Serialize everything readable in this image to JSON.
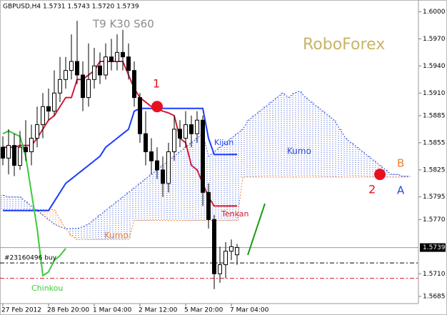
{
  "chart_data": {
    "type": "candlestick",
    "title": "GBPUSD,H4  1.5731 1.5743 1.5720 1.5739",
    "subtitle": "T9 K30 S60",
    "watermark": "RoboForex",
    "categories": [
      "27 Feb 2012",
      null,
      null,
      null,
      null,
      null,
      null,
      null,
      "28 Feb 20:00",
      null,
      null,
      null,
      null,
      null,
      null,
      null,
      "1 Mar 04:00",
      null,
      null,
      null,
      null,
      null,
      null,
      null,
      "2 Mar 12:00",
      null,
      null,
      null,
      null,
      null,
      null,
      null,
      "5 Mar 20:00",
      null,
      null,
      null,
      null,
      null,
      null,
      null,
      "7 Mar 04:00",
      null,
      null,
      null,
      null,
      null,
      null,
      null,
      null,
      null,
      null,
      null,
      null,
      null,
      null,
      null,
      null,
      null,
      null,
      null,
      null,
      null,
      null,
      null,
      null,
      null,
      null,
      null,
      null,
      null,
      null,
      null
    ],
    "open": [
      1.585,
      1.5838,
      1.5852,
      1.583,
      1.585,
      1.5845,
      1.586,
      1.5875,
      1.5895,
      1.589,
      1.591,
      1.5925,
      1.5935,
      1.5945,
      1.593,
      1.5905,
      1.5925,
      1.594,
      1.593,
      1.595,
      1.5945,
      1.5955,
      1.595,
      1.5935,
      1.5905,
      1.5865,
      1.5845,
      1.5835,
      1.5825,
      1.581,
      1.5845,
      1.587,
      1.586,
      1.5875,
      1.5865,
      1.588,
      1.58,
      1.577,
      1.571,
      1.572,
      1.5735,
      1.5731,
      null,
      null,
      null,
      null,
      null,
      null,
      null,
      null,
      null,
      null,
      null,
      null,
      null,
      null,
      null,
      null,
      null,
      null,
      null,
      null,
      null,
      null,
      null,
      null,
      null,
      null,
      null,
      null,
      null,
      null
    ],
    "high": [
      1.5862,
      1.587,
      1.5865,
      1.5868,
      1.588,
      1.5875,
      1.5895,
      1.591,
      1.5915,
      1.5935,
      1.595,
      1.595,
      1.5975,
      1.599,
      1.5945,
      1.5965,
      1.596,
      1.5955,
      1.5965,
      1.597,
      1.5975,
      1.598,
      1.5965,
      1.5945,
      1.591,
      1.589,
      1.586,
      1.585,
      1.584,
      1.5855,
      1.5885,
      1.588,
      1.589,
      1.5885,
      1.589,
      1.5885,
      1.581,
      1.5775,
      1.574,
      1.5745,
      1.5748,
      1.5743,
      null,
      null,
      null,
      null,
      null,
      null,
      null,
      null,
      null,
      null,
      null,
      null,
      null,
      null,
      null,
      null,
      null,
      null,
      null,
      null,
      null,
      null,
      null,
      null,
      null,
      null,
      null,
      null,
      null,
      null
    ],
    "low": [
      1.583,
      1.582,
      1.5818,
      1.5825,
      1.5835,
      1.583,
      1.585,
      1.586,
      1.588,
      1.5885,
      1.59,
      1.5915,
      1.5925,
      1.592,
      1.589,
      1.5895,
      1.5915,
      1.592,
      1.5925,
      1.5935,
      1.5935,
      1.5935,
      1.5925,
      1.5895,
      1.5855,
      1.583,
      1.582,
      1.5815,
      1.5795,
      1.58,
      1.5835,
      1.585,
      1.585,
      1.585,
      1.5855,
      1.5785,
      1.576,
      1.5693,
      1.57,
      1.5705,
      1.5725,
      1.572,
      null,
      null,
      null,
      null,
      null,
      null,
      null,
      null,
      null,
      null,
      null,
      null,
      null,
      null,
      null,
      null,
      null,
      null,
      null,
      null,
      null,
      null,
      null,
      null,
      null,
      null,
      null,
      null,
      null,
      null
    ],
    "close": [
      1.5838,
      1.5852,
      1.583,
      1.585,
      1.5845,
      1.586,
      1.5875,
      1.5895,
      1.589,
      1.591,
      1.5925,
      1.5935,
      1.5945,
      1.593,
      1.5905,
      1.5925,
      1.594,
      1.593,
      1.595,
      1.5945,
      1.5955,
      1.595,
      1.5935,
      1.5905,
      1.5865,
      1.5845,
      1.5835,
      1.5825,
      1.581,
      1.5845,
      1.587,
      1.586,
      1.5875,
      1.5865,
      1.588,
      1.58,
      1.577,
      1.571,
      1.572,
      1.5735,
      1.574,
      1.5739,
      null,
      null,
      null,
      null,
      null,
      null,
      null,
      null,
      null,
      null,
      null,
      null,
      null,
      null,
      null,
      null,
      null,
      null,
      null,
      null,
      null,
      null,
      null,
      null,
      null,
      null,
      null,
      null,
      null,
      null
    ],
    "bull_color": "#ffffff",
    "bear_color": "#000000",
    "series": [
      {
        "name": "Tenkan",
        "color": "#d21a3a",
        "values": [
          1.585,
          1.585,
          1.585,
          1.5852,
          1.5852,
          1.5852,
          1.586,
          1.587,
          1.588,
          1.5885,
          1.5895,
          1.5905,
          1.5905,
          1.5925,
          1.5925,
          1.593,
          1.5935,
          1.5945,
          1.5945,
          1.5945,
          1.5945,
          1.5945,
          1.593,
          1.5915,
          1.5905,
          1.59,
          1.5895,
          1.5893,
          1.589,
          1.5888,
          1.5885,
          1.586,
          1.5855,
          1.583,
          1.5825,
          1.581,
          1.5795,
          1.5785,
          1.5785,
          1.5785,
          1.5785,
          1.5785,
          null,
          null,
          null,
          null,
          null,
          null,
          null,
          null,
          null,
          null,
          null,
          null,
          null,
          null,
          null,
          null,
          null,
          null,
          null,
          null,
          null,
          null,
          null,
          null,
          null,
          null,
          null,
          null,
          null,
          null
        ]
      },
      {
        "name": "Kijun",
        "color": "#1a3cff",
        "values": [
          1.578,
          1.578,
          1.578,
          1.578,
          1.578,
          1.578,
          1.578,
          1.578,
          1.578,
          1.579,
          1.58,
          1.581,
          1.5815,
          1.582,
          1.5825,
          1.583,
          1.5835,
          1.584,
          1.585,
          1.5855,
          1.586,
          1.5865,
          1.587,
          1.589,
          1.5893,
          1.5893,
          1.5893,
          1.5893,
          1.5893,
          1.5893,
          1.5893,
          1.5893,
          1.5893,
          1.5893,
          1.5893,
          1.5893,
          1.586,
          1.5842,
          1.5842,
          1.5842,
          1.5842,
          1.5842,
          null,
          null,
          null,
          null,
          null,
          null,
          null,
          null,
          null,
          null,
          null,
          null,
          null,
          null,
          null,
          null,
          null,
          null,
          null,
          null,
          null,
          null,
          null,
          null,
          null,
          null,
          null,
          null,
          null,
          null
        ]
      },
      {
        "name": "Chinkou",
        "color": "#3cc83c",
        "values": [
          1.5865,
          1.5868,
          1.5865,
          1.5862,
          1.584,
          1.58,
          1.576,
          1.5708,
          1.5712,
          1.5725,
          1.573,
          1.5738,
          null,
          null,
          null,
          null,
          null,
          null,
          null,
          null,
          null,
          null,
          null,
          null,
          null,
          null,
          null,
          null,
          null,
          null,
          null,
          null,
          null,
          null,
          null,
          null,
          null,
          null,
          null,
          null,
          null,
          null,
          null,
          null,
          null,
          null,
          null,
          null,
          null,
          null,
          null,
          null,
          null,
          null,
          null,
          null,
          null,
          null,
          null,
          null,
          null,
          null,
          null,
          null,
          null,
          null,
          null,
          null,
          null,
          null,
          null,
          null
        ]
      }
    ],
    "cloud": {
      "a_label": "A",
      "b_label": "B",
      "a_color": "#2846d8",
      "b_color": "#f08030",
      "labels": [
        "Kumo",
        "Kumo"
      ],
      "a": [
        1.5797,
        1.5795,
        1.5795,
        1.5795,
        1.579,
        1.5785,
        1.578,
        1.5775,
        1.577,
        1.5765,
        1.5762,
        1.576,
        1.576,
        1.576,
        1.5762,
        1.5765,
        1.577,
        1.5775,
        1.578,
        1.5785,
        1.579,
        1.5795,
        1.58,
        1.5805,
        1.581,
        1.5815,
        1.582,
        1.5825,
        1.583,
        1.5835,
        1.584,
        1.5845,
        1.585,
        1.5855,
        1.586,
        1.5865,
        1.584,
        1.5845,
        1.585,
        1.5855,
        1.586,
        1.5865,
        1.587,
        1.588,
        1.5885,
        1.589,
        1.5895,
        1.59,
        1.5905,
        1.591,
        1.5905,
        1.591,
        1.5912,
        1.5905,
        1.59,
        1.5895,
        1.589,
        1.5885,
        1.588,
        1.587,
        1.586,
        1.5855,
        1.585,
        1.5845,
        1.584,
        1.5835,
        1.583,
        1.5825,
        1.582,
        1.582,
        1.5818,
        1.5818
      ],
      "b": [
        1.5781,
        1.5781,
        1.5781,
        1.5781,
        1.5781,
        1.5781,
        1.5781,
        1.5781,
        1.5781,
        1.5781,
        1.577,
        1.576,
        1.5752,
        1.5748,
        1.5748,
        1.5748,
        1.5748,
        1.5748,
        1.5748,
        1.5748,
        1.5748,
        1.5748,
        1.5748,
        1.5769,
        1.5769,
        1.5769,
        1.5769,
        1.5769,
        1.5769,
        1.5769,
        1.5769,
        1.5769,
        1.5769,
        1.5769,
        1.5769,
        1.5769,
        1.5769,
        1.5769,
        1.5769,
        1.5769,
        1.5769,
        1.5769,
        1.5817,
        1.5817,
        1.5817,
        1.5817,
        1.5817,
        1.5817,
        1.5817,
        1.5817,
        1.5817,
        1.5817,
        1.5817,
        1.5817,
        1.5817,
        1.5817,
        1.5817,
        1.5817,
        1.5817,
        1.5817,
        1.5817,
        1.5817,
        1.5817,
        1.5817,
        1.5817,
        1.5817,
        1.5817,
        1.5817,
        1.5817,
        1.5817,
        1.5817,
        1.5817
      ]
    },
    "markers": [
      {
        "label": "1",
        "x": 27,
        "y": 1.5895,
        "color": "#e8101e"
      },
      {
        "label": "2",
        "x": 66,
        "y": 1.582,
        "color": "#e8101e"
      }
    ],
    "hlines": [
      {
        "value": 1.5739,
        "label": "1.5739",
        "color": "#9a9a9a",
        "style": "solid"
      },
      {
        "value": 1.5722,
        "label": "#23160496 buy",
        "color": "#000000",
        "style": "dashdot"
      },
      {
        "value": 1.5705,
        "color": "#e8101e",
        "style": "dashdot"
      }
    ],
    "ylim": [
      1.5677,
      1.6013
    ],
    "yticks": [
      {
        "value": 1.6,
        "label": "1.6000"
      },
      {
        "value": 1.597,
        "label": "1.5970"
      },
      {
        "value": 1.594,
        "label": "1.5940"
      },
      {
        "value": 1.591,
        "label": "1.5910"
      },
      {
        "value": 1.5885,
        "label": "1.5885"
      },
      {
        "value": 1.5855,
        "label": "1.5855"
      },
      {
        "value": 1.5825,
        "label": "1.5825"
      },
      {
        "value": 1.5795,
        "label": "1.5795"
      },
      {
        "value": 1.577,
        "label": "1.5770"
      },
      {
        "value": 1.571,
        "label": "1.5710"
      },
      {
        "value": 1.5685,
        "label": "1.5685"
      }
    ]
  }
}
